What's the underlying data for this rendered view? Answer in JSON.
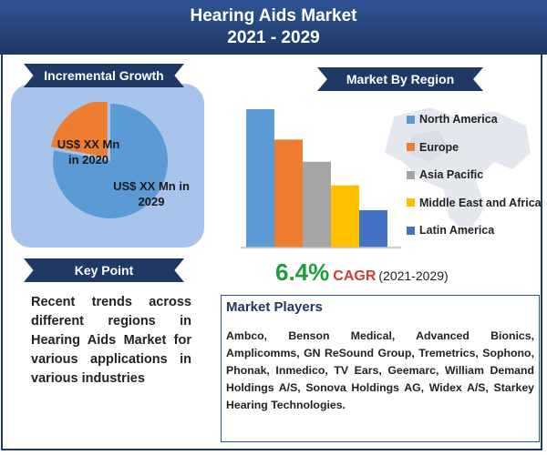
{
  "title": {
    "line1": "Hearing Aids Market",
    "line2": "2021 - 2029"
  },
  "incremental": {
    "heading": "Incremental Growth",
    "label_2020": "US$ XX Mn\nin 2020",
    "label_2029": "US$ XX Mn in\n2029"
  },
  "keypoint": {
    "heading": "Key Point",
    "text": "Recent trends across different regions in Hearing Aids Market for various applications in various industries"
  },
  "region": {
    "heading": "Market By Region"
  },
  "cagr": {
    "value": "6.4%",
    "label": "CAGR",
    "years": "(2021-2029)"
  },
  "players": {
    "heading": "Market Players",
    "text": "Ambco, Benson Medical, Advanced Bionics, Amplicomms, GN ReSound Group, Tremetrics, Sophono, Phonak, Inmedico, TV Ears, Geemarc, William Demand Holdings A/S, Sonova Holdings AG, Widex A/S, Starkey Hearing Technologies."
  },
  "colors": {
    "title_bg": "#1f3864",
    "cagr_green": "#1e9e3b",
    "cagr_red": "#d43a3a"
  },
  "chart_data": [
    {
      "type": "pie",
      "series": [
        {
          "name": "2020",
          "value": 22,
          "color": "#ed7d31"
        },
        {
          "name": "2029",
          "value": 78,
          "color": "#5b9bd5"
        }
      ]
    },
    {
      "type": "bar",
      "categories": [
        "North America",
        "Europe",
        "Asia Pacific",
        "Middle East and Africa",
        "Latin America"
      ],
      "values": [
        100,
        78,
        62,
        45,
        27
      ],
      "colors": [
        "#5b9bd5",
        "#ed7d31",
        "#a5a5a5",
        "#ffc000",
        "#4472c4"
      ],
      "ylim": [
        0,
        100
      ]
    }
  ]
}
